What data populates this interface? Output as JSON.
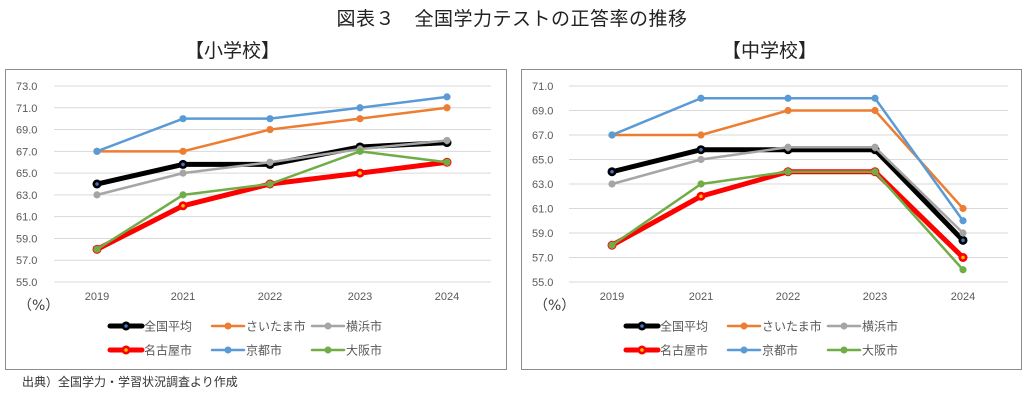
{
  "title": "図表３　全国学力テストの正答率の推移",
  "source": "出典）全国学力・学習状況調査より作成",
  "chart_data": [
    {
      "type": "line",
      "title": "【小学校】",
      "unit_label": "（%）",
      "xlabel": "",
      "ylabel": "（%）",
      "categories": [
        "2019",
        "2021",
        "2022",
        "2023",
        "2024"
      ],
      "ylim": [
        55.0,
        73.0
      ],
      "ytick_step": 2.0,
      "yticks": [
        "55.0",
        "57.0",
        "59.0",
        "61.0",
        "63.0",
        "65.0",
        "67.0",
        "69.0",
        "71.0",
        "73.0"
      ],
      "grid": true,
      "legend_position": "bottom",
      "series": [
        {
          "name": "全国平均",
          "color": "#000000",
          "marker_fill": "#4472c4",
          "weight": "heavy",
          "values": [
            64.0,
            65.8,
            65.8,
            67.4,
            67.8
          ]
        },
        {
          "name": "さいたま市",
          "color": "#ed7d31",
          "marker_fill": "#ed7d31",
          "weight": "normal",
          "values": [
            67.0,
            67.0,
            69.0,
            70.0,
            71.0
          ]
        },
        {
          "name": "横浜市",
          "color": "#a5a5a5",
          "marker_fill": "#a5a5a5",
          "weight": "normal",
          "values": [
            63.0,
            65.0,
            66.0,
            67.2,
            68.0
          ]
        },
        {
          "name": "名古屋市",
          "color": "#ff0000",
          "marker_fill": "#ffc000",
          "weight": "heavy",
          "values": [
            58.0,
            62.0,
            64.0,
            65.0,
            66.0
          ]
        },
        {
          "name": "京都市",
          "color": "#5b9bd5",
          "marker_fill": "#5b9bd5",
          "weight": "normal",
          "values": [
            67.0,
            70.0,
            70.0,
            71.0,
            72.0
          ]
        },
        {
          "name": "大阪市",
          "color": "#70ad47",
          "marker_fill": "#70ad47",
          "weight": "normal",
          "values": [
            58.0,
            63.0,
            64.0,
            67.0,
            66.0
          ]
        }
      ]
    },
    {
      "type": "line",
      "title": "【中学校】",
      "unit_label": "（%）",
      "xlabel": "",
      "ylabel": "（%）",
      "categories": [
        "2019",
        "2021",
        "2022",
        "2023",
        "2024"
      ],
      "ylim": [
        55.0,
        71.0
      ],
      "ytick_step": 2.0,
      "yticks": [
        "55.0",
        "57.0",
        "59.0",
        "61.0",
        "63.0",
        "65.0",
        "67.0",
        "69.0",
        "71.0"
      ],
      "grid": true,
      "legend_position": "bottom",
      "series": [
        {
          "name": "全国平均",
          "color": "#000000",
          "marker_fill": "#4472c4",
          "weight": "heavy",
          "values": [
            64.0,
            65.8,
            65.8,
            65.8,
            58.4
          ]
        },
        {
          "name": "さいたま市",
          "color": "#ed7d31",
          "marker_fill": "#ed7d31",
          "weight": "normal",
          "values": [
            67.0,
            67.0,
            69.0,
            69.0,
            61.0
          ]
        },
        {
          "name": "横浜市",
          "color": "#a5a5a5",
          "marker_fill": "#a5a5a5",
          "weight": "normal",
          "values": [
            63.0,
            65.0,
            66.0,
            66.0,
            59.0
          ]
        },
        {
          "name": "名古屋市",
          "color": "#ff0000",
          "marker_fill": "#ffc000",
          "weight": "heavy",
          "values": [
            58.0,
            62.0,
            64.0,
            64.0,
            57.0
          ]
        },
        {
          "name": "京都市",
          "color": "#5b9bd5",
          "marker_fill": "#5b9bd5",
          "weight": "normal",
          "values": [
            67.0,
            70.0,
            70.0,
            70.0,
            60.0
          ]
        },
        {
          "name": "大阪市",
          "color": "#70ad47",
          "marker_fill": "#70ad47",
          "weight": "normal",
          "values": [
            58.0,
            63.0,
            64.0,
            64.0,
            56.0
          ]
        }
      ]
    }
  ]
}
